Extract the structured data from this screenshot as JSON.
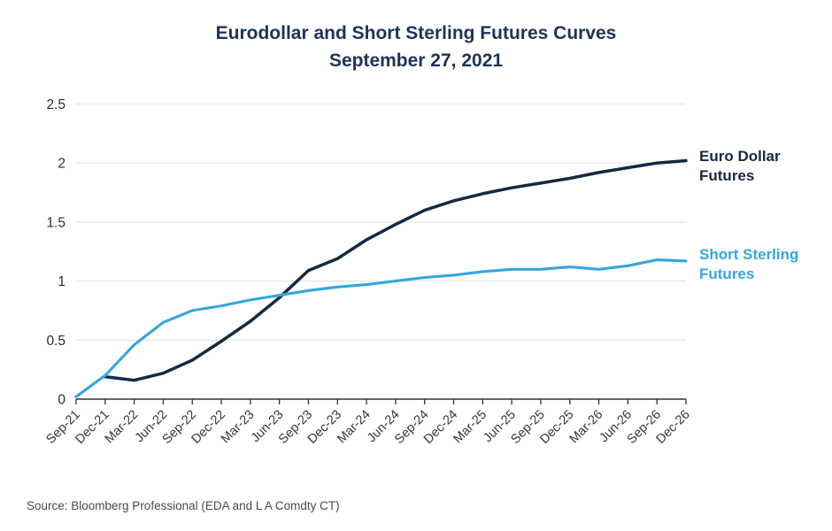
{
  "chart_data": {
    "type": "line",
    "title": "Eurodollar and Short Sterling Futures Curves",
    "subtitle": "September 27, 2021",
    "xlabel": "",
    "ylabel": "",
    "ylim": [
      0,
      2.5
    ],
    "yticks": [
      0,
      0.5,
      1,
      1.5,
      2,
      2.5
    ],
    "grid": "horizontal",
    "legend_position": "right-annotations",
    "categories": [
      "Sep-21",
      "Dec-21",
      "Mar-22",
      "Jun-22",
      "Sep-22",
      "Dec-22",
      "Mar-23",
      "Jun-23",
      "Sep-23",
      "Dec-23",
      "Mar-24",
      "Jun-24",
      "Sep-24",
      "Dec-24",
      "Mar-25",
      "Jun-25",
      "Sep-25",
      "Dec-25",
      "Mar-26",
      "Jun-26",
      "Sep-26",
      "Dec-26"
    ],
    "series": [
      {
        "name": "Euro Dollar Futures",
        "color": "#16293f",
        "values": [
          null,
          0.19,
          0.16,
          0.22,
          0.33,
          0.49,
          0.66,
          0.86,
          1.09,
          1.19,
          1.35,
          1.48,
          1.6,
          1.68,
          1.74,
          1.79,
          1.83,
          1.87,
          1.92,
          1.96,
          2.0,
          2.02
        ]
      },
      {
        "name": "Short Sterling Futures",
        "color": "#35a7db",
        "values": [
          0.02,
          0.2,
          0.46,
          0.65,
          0.75,
          0.79,
          0.84,
          0.88,
          0.92,
          0.95,
          0.97,
          1.0,
          1.03,
          1.05,
          1.08,
          1.1,
          1.1,
          1.12,
          1.1,
          1.13,
          1.18,
          1.17
        ]
      }
    ]
  },
  "colors": {
    "title_navy": "#1e3456",
    "gridline": "#e8e8e8",
    "axis": "#303338",
    "x_tick_label": "#33373d",
    "y_tick_label": "#2d2d2d",
    "source": "#4a4a4a"
  },
  "source": {
    "text": "Source: Bloomberg Professional (EDA and L A Comdty CT)"
  }
}
